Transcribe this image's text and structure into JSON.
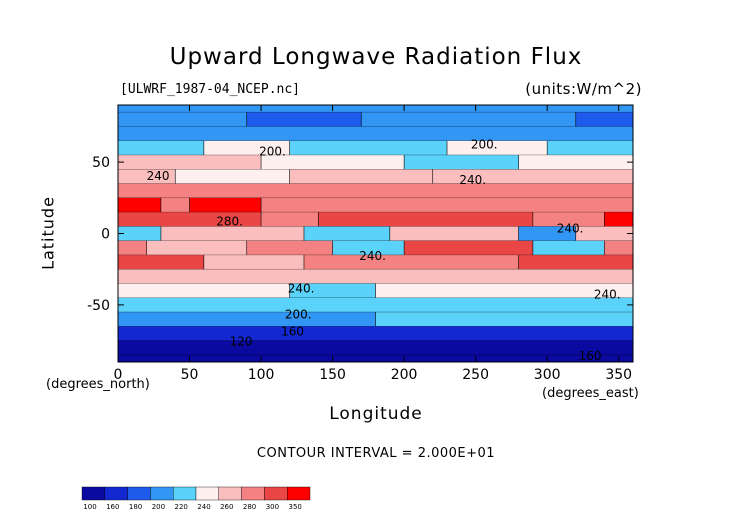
{
  "chart_data": {
    "type": "heatmap",
    "title": "Upward Longwave Radiation Flux",
    "subtitle_left": "[ULWRF_1987-04_NCEP.nc]",
    "subtitle_right": "(units:W/m^2)",
    "xlabel": "Longitude",
    "ylabel": "Latitude",
    "x_unit": "(degrees_east)",
    "y_unit": "(degrees_north)",
    "xlim": [
      0,
      360
    ],
    "ylim": [
      -90,
      90
    ],
    "x_ticks": [
      0,
      50,
      100,
      150,
      200,
      250,
      300,
      350
    ],
    "y_ticks": [
      -50,
      0,
      50
    ],
    "contour_interval_text": "CONTOUR INTERVAL = 2.000E+01",
    "contour_labels": [
      {
        "text": "200.",
        "lon": 108,
        "lat": 57
      },
      {
        "text": "240",
        "lon": 28,
        "lat": 40
      },
      {
        "text": "280.",
        "lon": 78,
        "lat": 8
      },
      {
        "text": "240.",
        "lon": 178,
        "lat": -16
      },
      {
        "text": "240.",
        "lon": 248,
        "lat": 37
      },
      {
        "text": "200.",
        "lon": 256,
        "lat": 62
      },
      {
        "text": "240.",
        "lon": 316,
        "lat": 3
      },
      {
        "text": "240.",
        "lon": 342,
        "lat": -43
      },
      {
        "text": "240.",
        "lon": 128,
        "lat": -39
      },
      {
        "text": "200.",
        "lon": 126,
        "lat": -57
      },
      {
        "text": "160",
        "lon": 122,
        "lat": -69
      },
      {
        "text": "120",
        "lon": 86,
        "lat": -76
      },
      {
        "text": "160",
        "lon": 330,
        "lat": -86
      }
    ],
    "colorbar": {
      "levels": [
        "100",
        "160",
        "180",
        "200",
        "220",
        "240",
        "260",
        "280",
        "300",
        "350"
      ],
      "colors": [
        "#0a0aa0",
        "#1428d2",
        "#1e5aeb",
        "#3296f5",
        "#5ad2fa",
        "#fff0f0",
        "#fabebe",
        "#f58282",
        "#eb4646",
        "#ff0000"
      ]
    },
    "field_rows": [
      {
        "lat": 90,
        "segments": [
          [
            0,
            360,
            3
          ]
        ]
      },
      {
        "lat": 80,
        "segments": [
          [
            0,
            90,
            3
          ],
          [
            90,
            170,
            2
          ],
          [
            170,
            320,
            3
          ],
          [
            320,
            360,
            2
          ]
        ]
      },
      {
        "lat": 70,
        "segments": [
          [
            0,
            360,
            3
          ]
        ]
      },
      {
        "lat": 60,
        "segments": [
          [
            0,
            60,
            4
          ],
          [
            60,
            120,
            5
          ],
          [
            120,
            230,
            4
          ],
          [
            230,
            300,
            5
          ],
          [
            300,
            360,
            4
          ]
        ]
      },
      {
        "lat": 50,
        "segments": [
          [
            0,
            100,
            6
          ],
          [
            100,
            200,
            5
          ],
          [
            200,
            280,
            4
          ],
          [
            280,
            360,
            5
          ]
        ]
      },
      {
        "lat": 40,
        "segments": [
          [
            0,
            40,
            6
          ],
          [
            40,
            120,
            5
          ],
          [
            120,
            220,
            6
          ],
          [
            220,
            360,
            6
          ]
        ]
      },
      {
        "lat": 30,
        "segments": [
          [
            0,
            360,
            7
          ]
        ]
      },
      {
        "lat": 20,
        "segments": [
          [
            0,
            30,
            9
          ],
          [
            30,
            50,
            7
          ],
          [
            50,
            100,
            9
          ],
          [
            100,
            360,
            7
          ]
        ]
      },
      {
        "lat": 10,
        "segments": [
          [
            0,
            100,
            8
          ],
          [
            100,
            140,
            7
          ],
          [
            140,
            290,
            8
          ],
          [
            290,
            340,
            7
          ],
          [
            340,
            360,
            9
          ]
        ]
      },
      {
        "lat": 0,
        "segments": [
          [
            0,
            30,
            4
          ],
          [
            30,
            130,
            6
          ],
          [
            130,
            190,
            4
          ],
          [
            190,
            280,
            6
          ],
          [
            280,
            320,
            3
          ],
          [
            320,
            360,
            6
          ]
        ]
      },
      {
        "lat": -10,
        "segments": [
          [
            0,
            20,
            7
          ],
          [
            20,
            90,
            6
          ],
          [
            90,
            150,
            7
          ],
          [
            150,
            200,
            4
          ],
          [
            200,
            290,
            8
          ],
          [
            290,
            340,
            4
          ],
          [
            340,
            360,
            7
          ]
        ]
      },
      {
        "lat": -20,
        "segments": [
          [
            0,
            60,
            8
          ],
          [
            60,
            130,
            6
          ],
          [
            130,
            280,
            7
          ],
          [
            280,
            360,
            8
          ]
        ]
      },
      {
        "lat": -30,
        "segments": [
          [
            0,
            360,
            6
          ]
        ]
      },
      {
        "lat": -40,
        "segments": [
          [
            0,
            120,
            5
          ],
          [
            120,
            180,
            4
          ],
          [
            180,
            360,
            5
          ]
        ]
      },
      {
        "lat": -50,
        "segments": [
          [
            0,
            360,
            4
          ]
        ]
      },
      {
        "lat": -60,
        "segments": [
          [
            0,
            180,
            3
          ],
          [
            180,
            360,
            4
          ]
        ]
      },
      {
        "lat": -70,
        "segments": [
          [
            0,
            360,
            1
          ]
        ]
      },
      {
        "lat": -80,
        "segments": [
          [
            0,
            360,
            0
          ]
        ]
      },
      {
        "lat": -90,
        "segments": [
          [
            0,
            360,
            0
          ]
        ]
      }
    ]
  }
}
